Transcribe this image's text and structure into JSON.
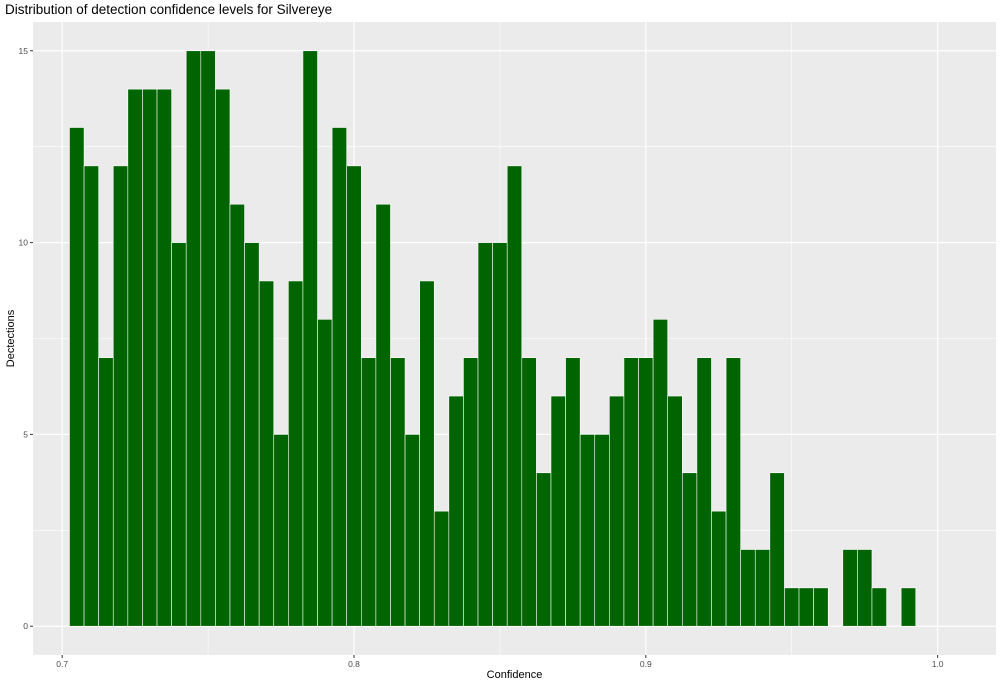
{
  "chart_data": {
    "type": "bar",
    "title": "Distribution of detection confidence levels for Silvereye",
    "xlabel": "Confidence",
    "ylabel": "Dectections",
    "bin_width": 0.005,
    "x": [
      0.705,
      0.71,
      0.715,
      0.72,
      0.725,
      0.73,
      0.735,
      0.74,
      0.745,
      0.75,
      0.755,
      0.76,
      0.765,
      0.77,
      0.775,
      0.78,
      0.785,
      0.79,
      0.795,
      0.8,
      0.805,
      0.81,
      0.815,
      0.82,
      0.825,
      0.83,
      0.835,
      0.84,
      0.845,
      0.85,
      0.855,
      0.86,
      0.865,
      0.87,
      0.875,
      0.88,
      0.885,
      0.89,
      0.895,
      0.9,
      0.905,
      0.91,
      0.915,
      0.92,
      0.925,
      0.93,
      0.935,
      0.94,
      0.945,
      0.95,
      0.955,
      0.96,
      0.965,
      0.97,
      0.975,
      0.98,
      0.985,
      0.99
    ],
    "values": [
      13,
      12,
      7,
      12,
      14,
      14,
      14,
      10,
      15,
      15,
      14,
      11,
      10,
      9,
      5,
      9,
      15,
      8,
      13,
      12,
      7,
      11,
      7,
      5,
      9,
      3,
      6,
      7,
      10,
      10,
      12,
      7,
      4,
      6,
      7,
      5,
      5,
      6,
      7,
      7,
      8,
      6,
      4,
      7,
      3,
      7,
      2,
      2,
      4,
      1,
      1,
      1,
      0,
      2,
      2,
      1,
      0,
      1
    ],
    "xlim": [
      0.69,
      1.02
    ],
    "ylim": [
      -0.75,
      15.75
    ],
    "xticks": [
      0.7,
      0.8,
      0.9,
      1.0
    ],
    "xtick_labels": [
      "0.7",
      "0.8",
      "0.9",
      "1.0"
    ],
    "yticks": [
      0,
      5,
      10,
      15
    ],
    "ytick_labels": [
      "0",
      "5",
      "10",
      "15"
    ],
    "grid": true,
    "colors": {
      "bar_fill": "#006400",
      "bar_outline": "#ffffff",
      "panel": "#ebebeb",
      "grid": "#ffffff"
    }
  }
}
